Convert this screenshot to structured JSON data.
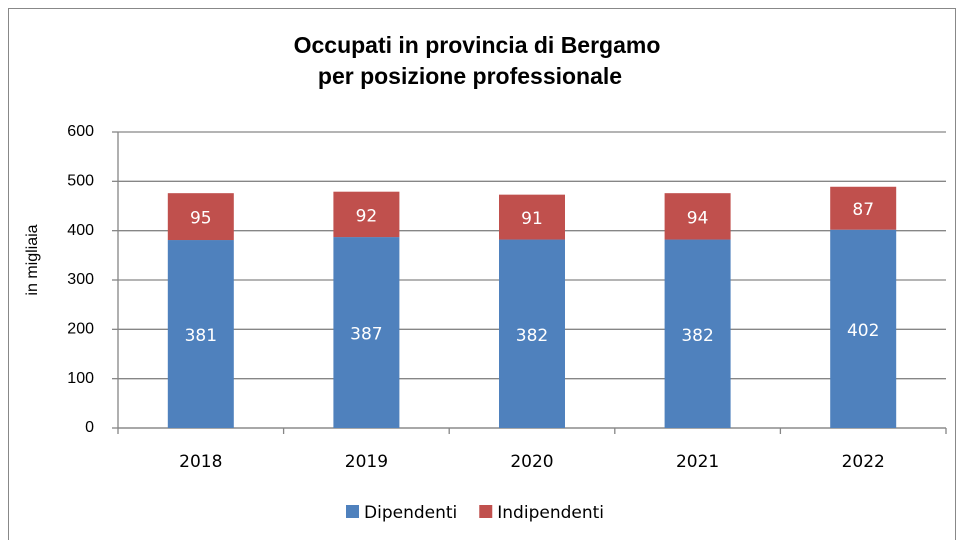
{
  "chart_data": {
    "type": "bar",
    "stacked": true,
    "title": [
      "Occupati in provincia di Bergamo",
      "per posizione professionale"
    ],
    "y_label": "in migliaia",
    "categories": [
      "2018",
      "2019",
      "2020",
      "2021",
      "2022"
    ],
    "series": [
      {
        "name": "Dipendenti",
        "color": "#4f81bd",
        "values": [
          381,
          387,
          382,
          382,
          402
        ]
      },
      {
        "name": "Indipendenti",
        "color": "#c0504d",
        "values": [
          95,
          92,
          91,
          94,
          87
        ]
      }
    ],
    "ylim": [
      0,
      600
    ],
    "yticks": [
      0,
      100,
      200,
      300,
      400,
      500,
      600
    ],
    "grid": true,
    "legend": "bottom"
  }
}
